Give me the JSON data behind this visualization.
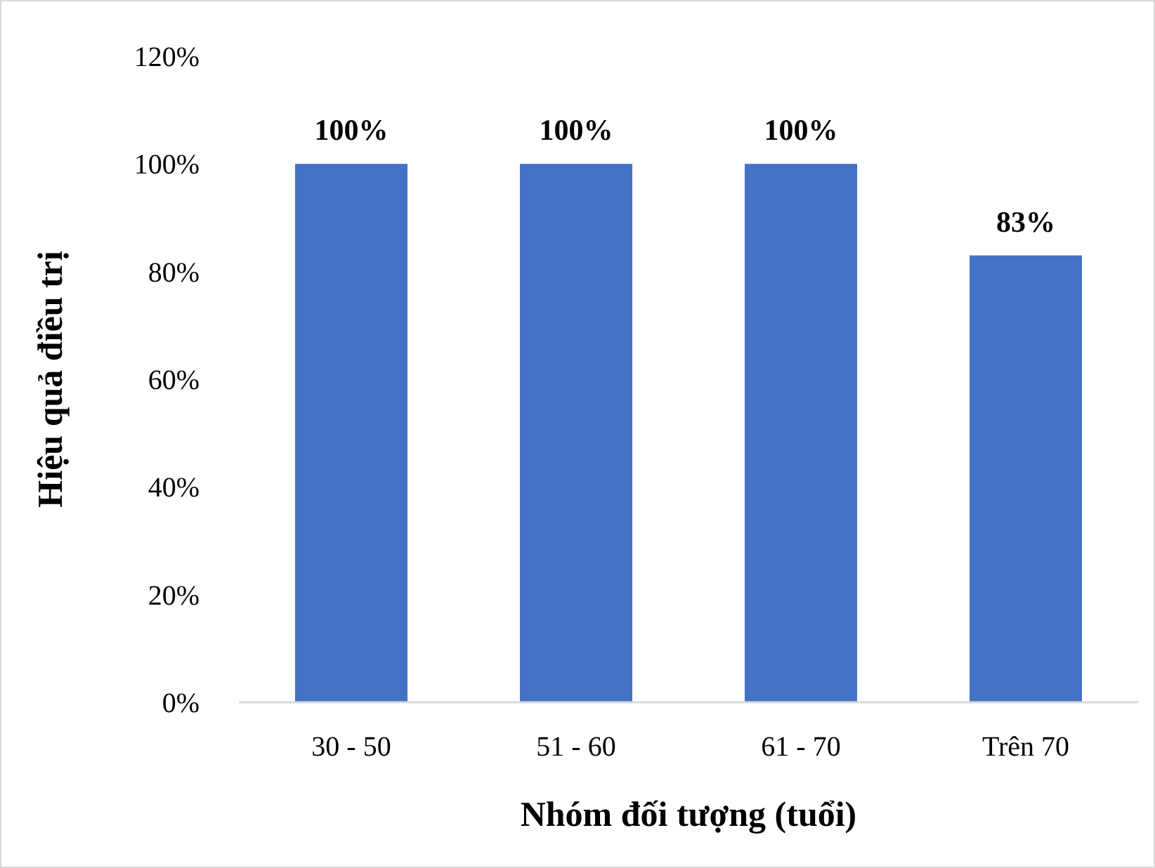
{
  "chart_data": {
    "type": "bar",
    "xlabel": "Nhóm đối tượng (tuổi)",
    "ylabel": "Hiệu quả điều trị",
    "categories": [
      "30 - 50",
      "51 - 60",
      "61 - 70",
      "Trên 70"
    ],
    "values": [
      100,
      100,
      100,
      83
    ],
    "value_labels": [
      "100%",
      "100%",
      "100%",
      "83%"
    ],
    "color": "#4472c4",
    "ylim": [
      0,
      120
    ],
    "yticks": [
      {
        "value": 0,
        "label": "0%"
      },
      {
        "value": 20,
        "label": "20%"
      },
      {
        "value": 40,
        "label": "40%"
      },
      {
        "value": 60,
        "label": "60%"
      },
      {
        "value": 80,
        "label": "80%"
      },
      {
        "value": 100,
        "label": "100%"
      },
      {
        "value": 120,
        "label": "120%"
      }
    ],
    "grid": false
  }
}
